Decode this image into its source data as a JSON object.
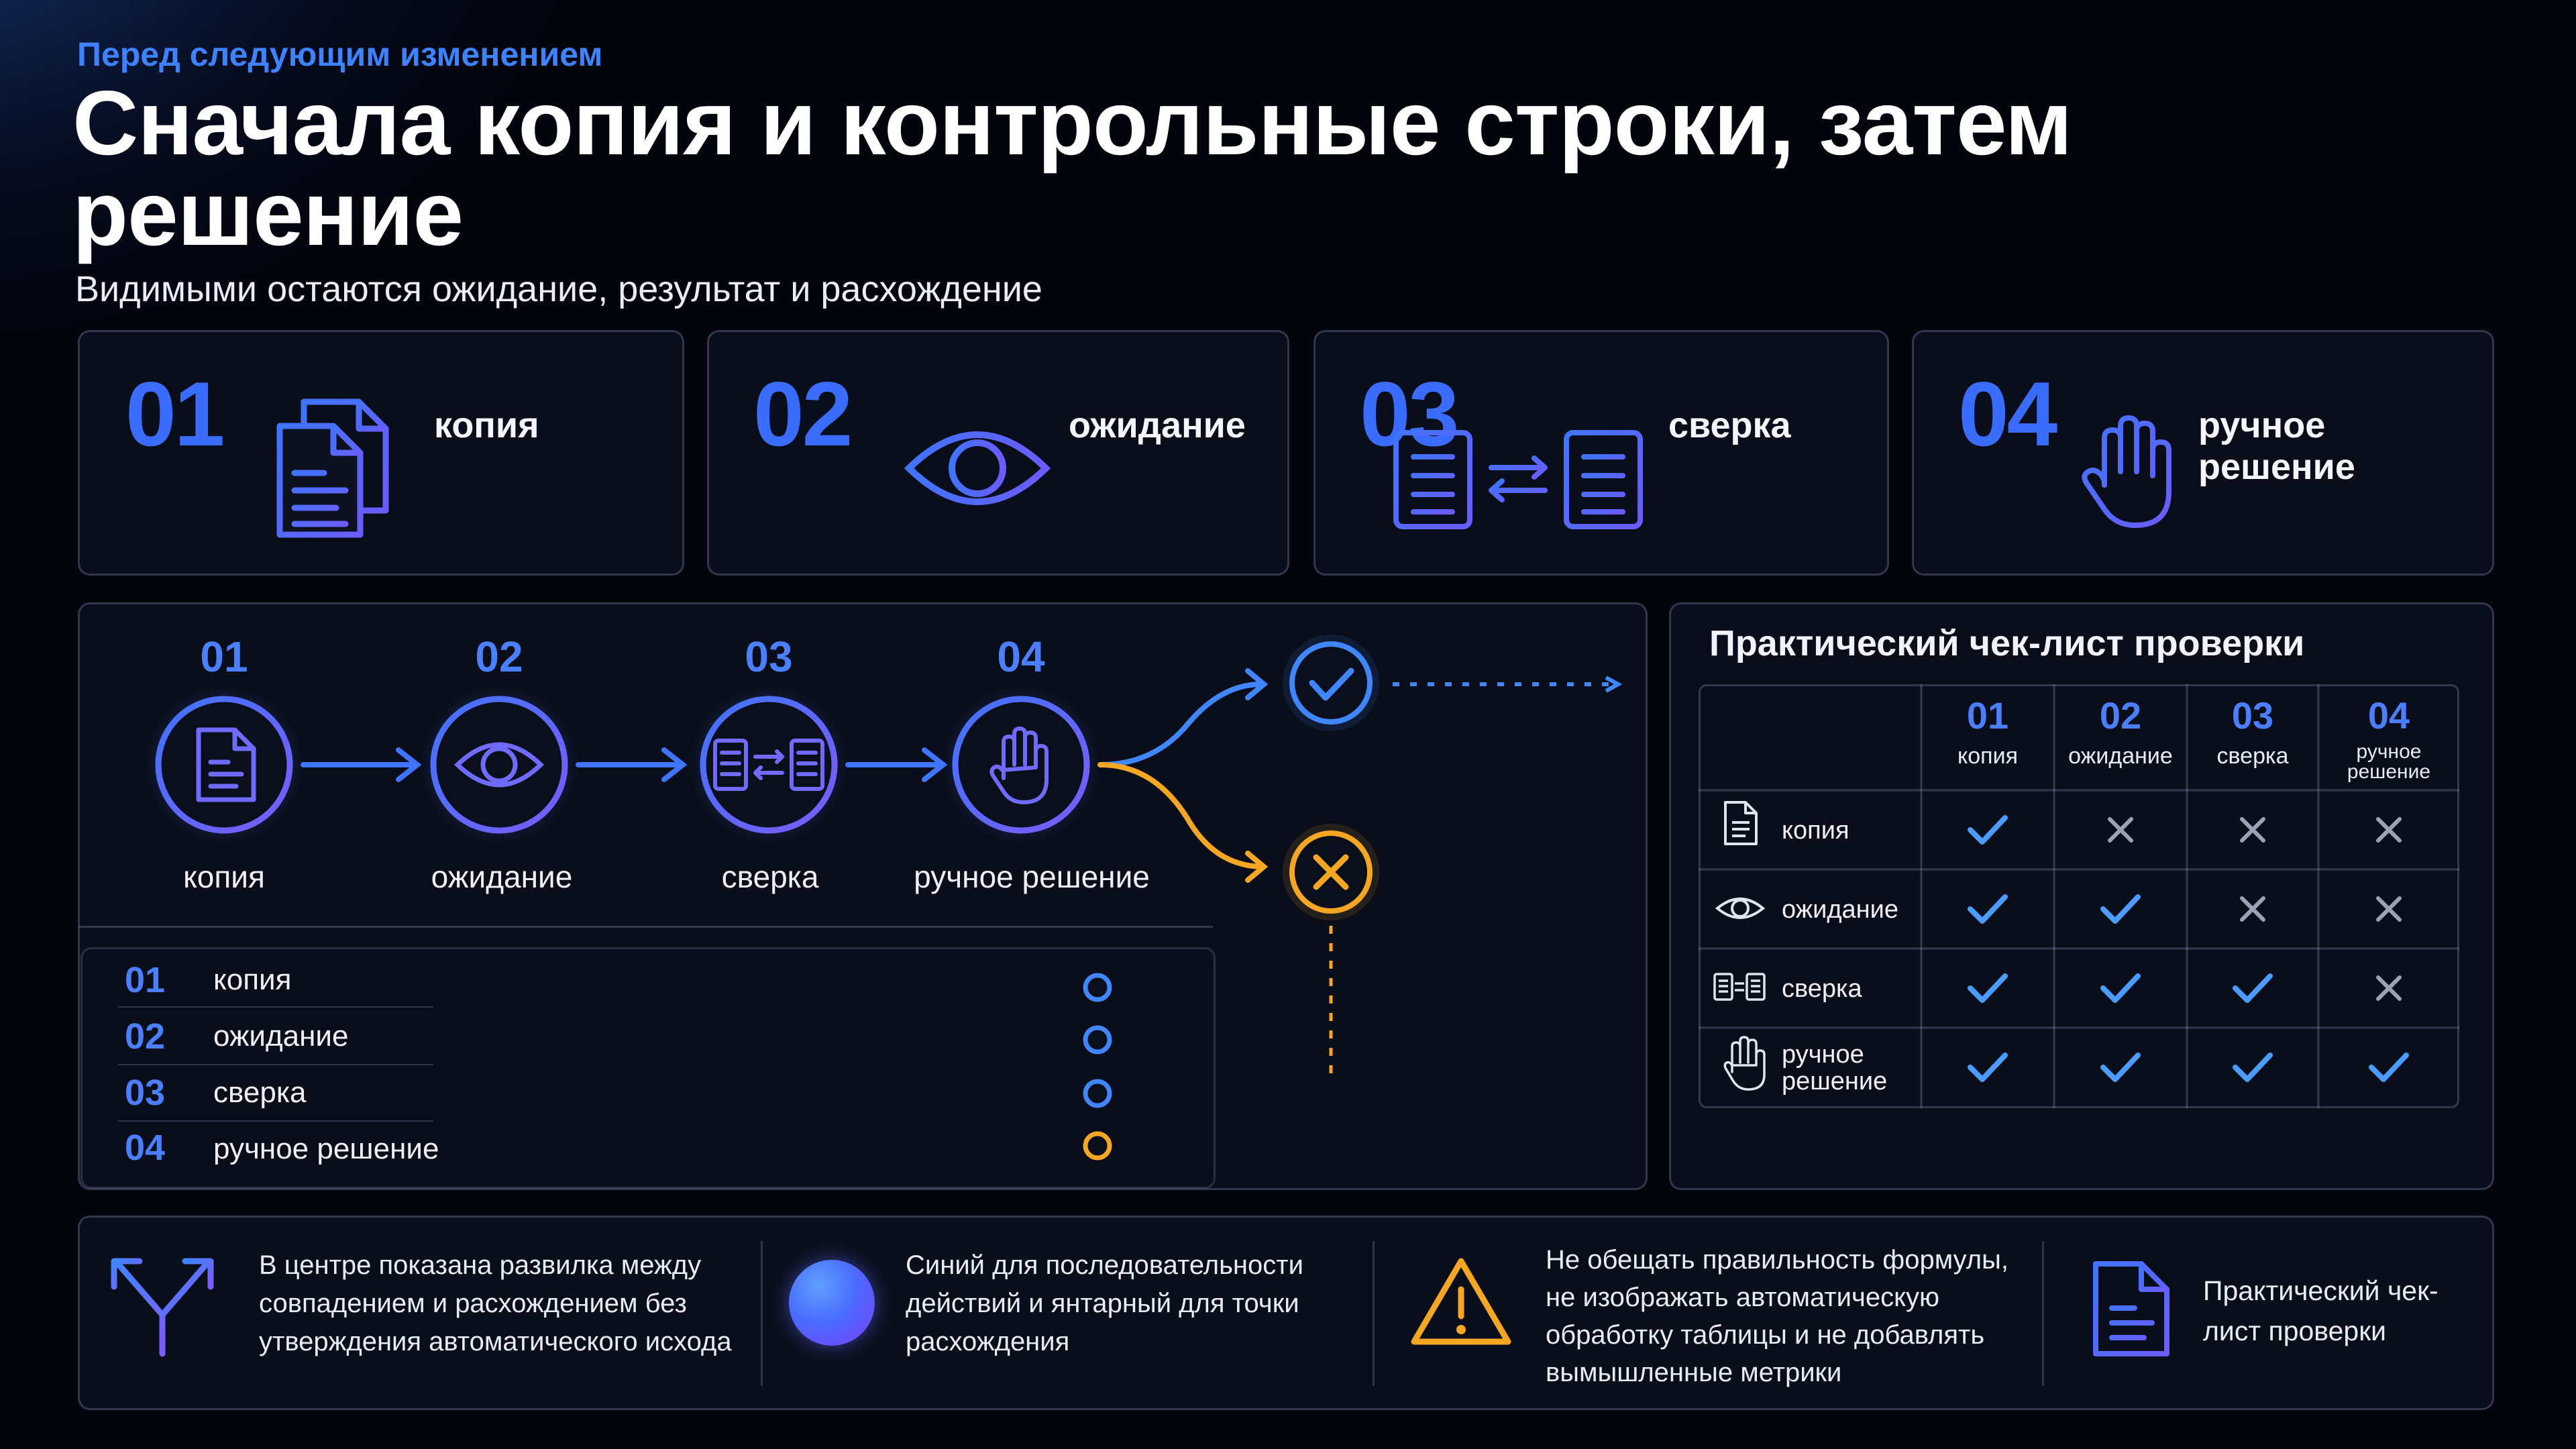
{
  "header": {
    "kicker": "Перед следующим изменением",
    "title": "Сначала копия и контрольные строки, затем решение",
    "subtitle": "Видимыми остаются ожидание, результат и расхождение"
  },
  "steps": [
    {
      "num": "01",
      "label": "копия",
      "icon": "documents-icon"
    },
    {
      "num": "02",
      "label": "ожидание",
      "icon": "eye-icon"
    },
    {
      "num": "03",
      "label": "сверка",
      "icon": "compare-documents-icon"
    },
    {
      "num": "04",
      "label": "ручное решение",
      "icon": "hand-icon"
    }
  ],
  "flow": {
    "nodes": [
      {
        "num": "01",
        "label": "копия"
      },
      {
        "num": "02",
        "label": "ожидание"
      },
      {
        "num": "03",
        "label": "сверка"
      },
      {
        "num": "04",
        "label": "ручное решение"
      }
    ],
    "outcomes": [
      {
        "kind": "match",
        "icon": "check-circle-icon"
      },
      {
        "kind": "mismatch",
        "icon": "x-circle-icon"
      }
    ]
  },
  "progress_rows": [
    {
      "num": "01",
      "label": "копия"
    },
    {
      "num": "02",
      "label": "ожидание"
    },
    {
      "num": "03",
      "label": "сверка"
    },
    {
      "num": "04",
      "label": "ручное решение"
    }
  ],
  "checklist": {
    "title": "Практический чек-лист проверки",
    "columns": [
      {
        "num": "01",
        "label": "копия"
      },
      {
        "num": "02",
        "label": "ожидание"
      },
      {
        "num": "03",
        "label": "сверка"
      },
      {
        "num": "04",
        "label": "ручное решение"
      }
    ],
    "rows": [
      {
        "label": "копия",
        "icon": "document-icon",
        "cells": [
          true,
          false,
          false,
          false
        ]
      },
      {
        "label": "ожидание",
        "icon": "eye-icon",
        "cells": [
          true,
          true,
          false,
          false
        ]
      },
      {
        "label": "сверка",
        "icon": "compare-icon",
        "cells": [
          true,
          true,
          true,
          false
        ]
      },
      {
        "label": "ручное решение",
        "icon": "hand-icon",
        "cells": [
          true,
          true,
          true,
          true
        ]
      }
    ]
  },
  "notes": [
    {
      "icon": "fork-arrows-icon",
      "text": "В центре показана развилка между совпадением и расхождением без утверждения автоматического исхода"
    },
    {
      "icon": "gradient-orb-icon",
      "text": "Синий для последовательности действий и янтарный для точки расхождения"
    },
    {
      "icon": "warning-icon",
      "text": "Не обещать правильность формулы, не изображать автоматическую обработку таблицы и не добавлять вымышленные метрики"
    },
    {
      "icon": "document-icon",
      "text": "Практический чек-лист проверки"
    }
  ],
  "colors": {
    "accent_blue": "#3a6cff",
    "accent_purple": "#7b5cff",
    "amber": "#f5a623",
    "check_blue": "#4a9dff",
    "cross_gray": "#9aa3b5"
  }
}
